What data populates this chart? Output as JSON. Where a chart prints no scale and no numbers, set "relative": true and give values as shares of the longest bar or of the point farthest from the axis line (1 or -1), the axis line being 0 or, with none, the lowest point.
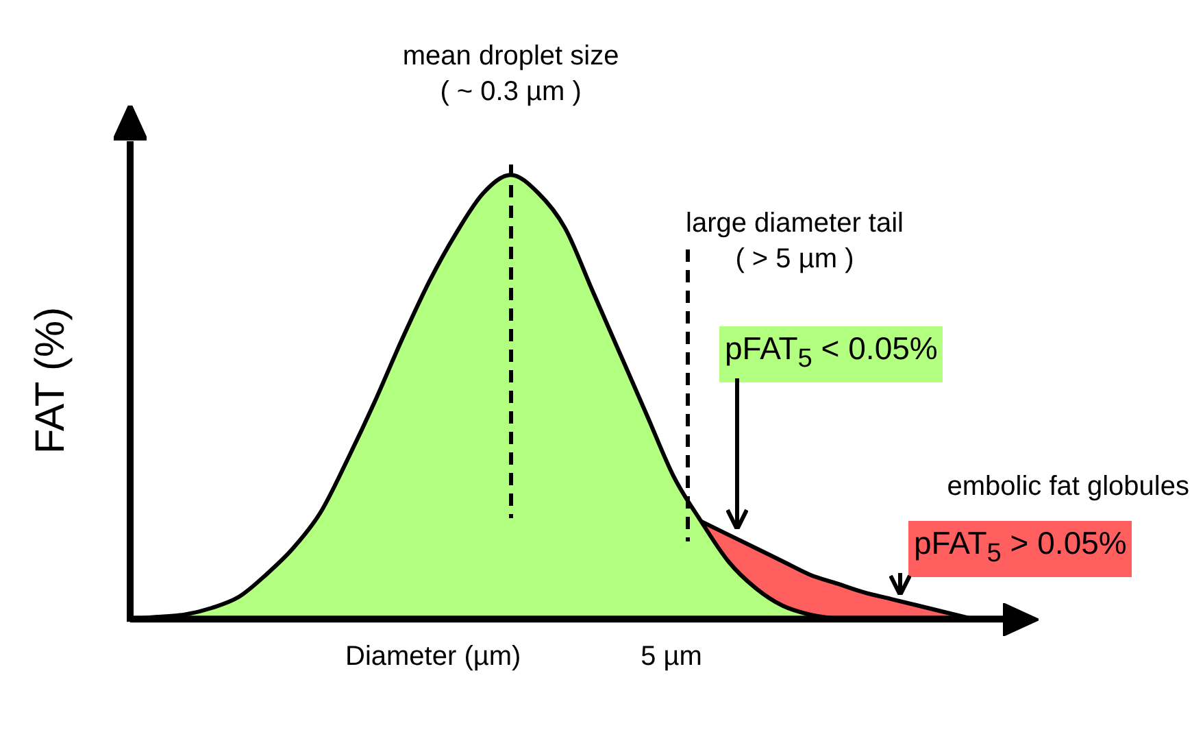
{
  "chart_data": {
    "type": "area",
    "relative": true,
    "xlabel": "Diameter (µm)",
    "ylabel": "FAT (%)",
    "grid": false,
    "legend": false,
    "marker": "none",
    "categories": [
      null,
      null,
      null,
      null,
      null,
      null,
      null,
      null,
      null,
      null,
      null,
      null,
      null,
      null,
      null,
      null,
      null,
      null,
      null,
      null,
      null,
      null,
      null,
      null,
      null,
      null,
      null,
      null,
      null,
      null,
      null,
      null,
      null
    ],
    "series": [
      {
        "color": "#ff5f5f",
        "values": [
          null,
          null,
          null,
          null,
          null,
          null,
          null,
          null,
          null,
          null,
          null,
          null,
          null,
          null,
          null,
          null,
          null,
          null,
          null,
          null,
          null,
          0.22,
          0.19,
          0.16,
          0.13,
          0.1,
          0.08,
          0.06,
          0.045,
          0.03,
          0.015,
          0,
          null
        ]
      },
      {
        "color": "#b3ff80",
        "values": [
          0,
          0.005,
          0.01,
          0.025,
          0.05,
          0.1,
          0.16,
          0.24,
          0.36,
          0.49,
          0.63,
          0.76,
          0.87,
          0.96,
          1,
          0.96,
          0.88,
          0.74,
          0.6,
          0.46,
          0.32,
          0.22,
          0.13,
          0.07,
          0.03,
          0.01,
          0,
          null,
          null,
          null,
          null,
          null,
          null
        ]
      }
    ],
    "annotations": [
      "mean droplet size\n( ~ 0.3 µm )",
      "large diameter tail\n( > 5 µm )",
      "5 µm",
      "pFAT$_{5}$ < 0.05%",
      "embolic fat globules",
      "pFAT$_{5}$ > 0.05%"
    ]
  }
}
